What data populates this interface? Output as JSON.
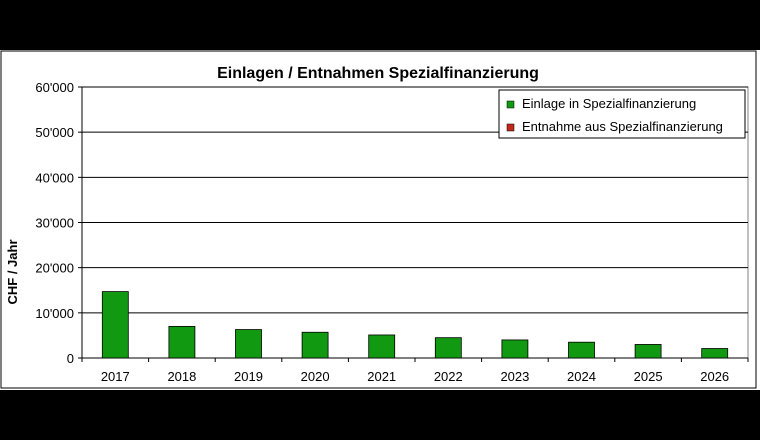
{
  "chart_data": {
    "type": "bar",
    "title": "Einlagen / Entnahmen Spezialfinanzierung",
    "xlabel": "",
    "ylabel": "CHF / Jahr",
    "categories": [
      "2017",
      "2018",
      "2019",
      "2020",
      "2021",
      "2022",
      "2023",
      "2024",
      "2025",
      "2026"
    ],
    "series": [
      {
        "name": "Einlage in Spezialfinanzierung",
        "color": "#129912",
        "values": [
          14700,
          7000,
          6300,
          5700,
          5100,
          4500,
          4000,
          3500,
          3000,
          2100
        ]
      },
      {
        "name": "Entnahme aus Spezialfinanzierung",
        "color": "#c0281c",
        "values": [
          0,
          0,
          0,
          0,
          0,
          0,
          0,
          0,
          0,
          0
        ]
      }
    ],
    "ylim": [
      0,
      60000
    ],
    "yticks": [
      0,
      10000,
      20000,
      30000,
      40000,
      50000,
      60000
    ],
    "ytick_labels": [
      "0",
      "10'000",
      "20'000",
      "30'000",
      "40'000",
      "50'000",
      "60'000"
    ],
    "grid": true,
    "legend_position": "top-right"
  }
}
